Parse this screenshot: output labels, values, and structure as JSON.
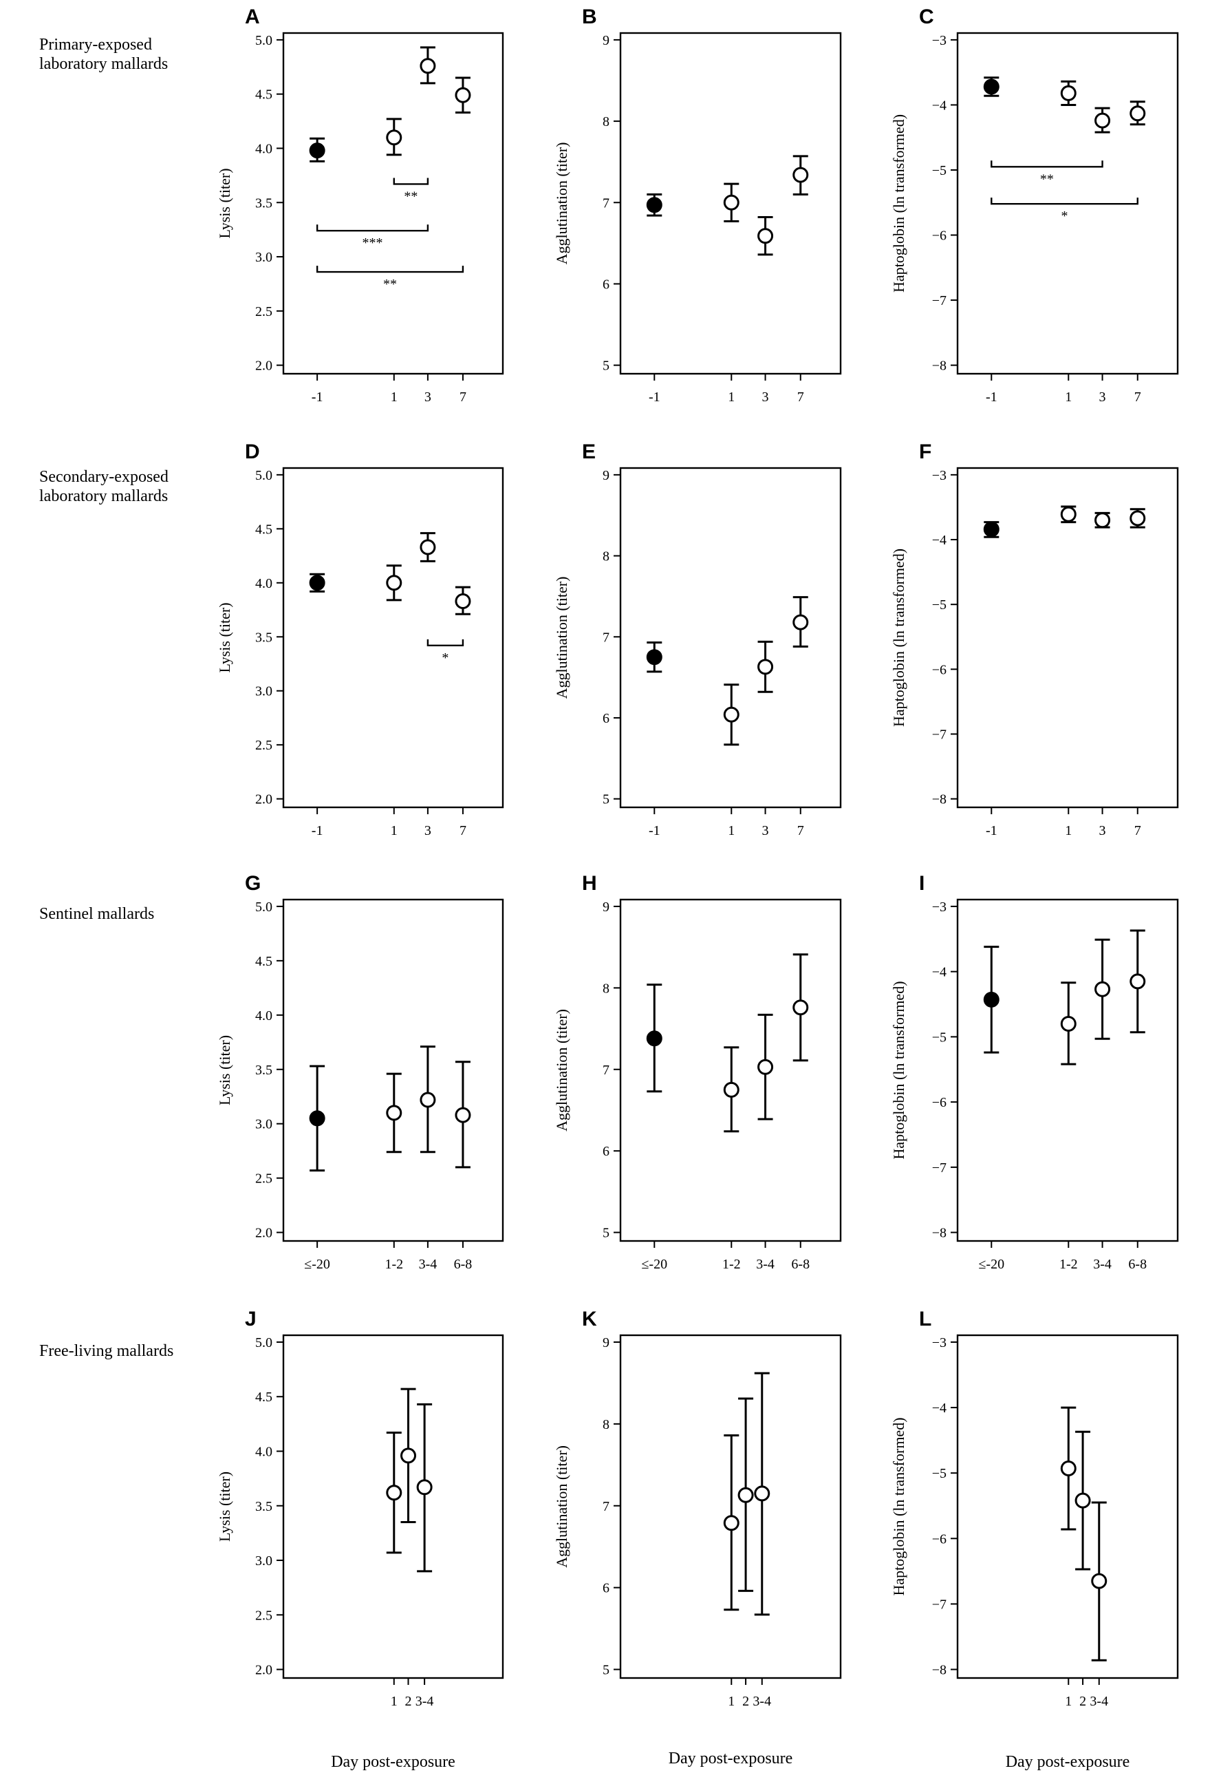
{
  "rows": [
    {
      "label": [
        "Primary-exposed",
        "laboratory mallards"
      ]
    },
    {
      "label": [
        "Secondary-exposed",
        "laboratory mallards"
      ]
    },
    {
      "label": [
        "Sentinel mallards"
      ]
    },
    {
      "label": [
        "Free-living mallards"
      ]
    }
  ],
  "xlabel": "Day post-exposure",
  "chart_data": [
    {
      "letter": "A",
      "type": "scatter",
      "ylabel": "Lysis (titer)",
      "ylim": [
        2.0,
        5.0
      ],
      "yticks": [
        "2.0",
        "2.5",
        "3.0",
        "3.5",
        "4.0",
        "4.5",
        "5.0"
      ],
      "xticks": [
        "-1",
        "1",
        "3",
        "7"
      ],
      "points": [
        {
          "x": "-1",
          "y": 3.98,
          "lo": 3.88,
          "hi": 4.09,
          "filled": true
        },
        {
          "x": "1",
          "y": 4.1,
          "lo": 3.94,
          "hi": 4.27,
          "filled": false
        },
        {
          "x": "3",
          "y": 4.76,
          "lo": 4.6,
          "hi": 4.93,
          "filled": false
        },
        {
          "x": "7",
          "y": 4.49,
          "lo": 4.33,
          "hi": 4.65,
          "filled": false
        }
      ],
      "significance": [
        {
          "from": "1",
          "to": "3",
          "y": 3.67,
          "label": "**"
        },
        {
          "from": "-1",
          "to": "3",
          "y": 3.24,
          "label": "***"
        },
        {
          "from": "-1",
          "to": "7",
          "y": 2.86,
          "label": "**"
        }
      ]
    },
    {
      "letter": "B",
      "type": "scatter",
      "ylabel": "Agglutination (titer)",
      "ylim": [
        5,
        9
      ],
      "yticks": [
        "5",
        "6",
        "7",
        "8",
        "9"
      ],
      "xticks": [
        "-1",
        "1",
        "3",
        "7"
      ],
      "points": [
        {
          "x": "-1",
          "y": 6.97,
          "lo": 6.84,
          "hi": 7.1,
          "filled": true
        },
        {
          "x": "1",
          "y": 7.0,
          "lo": 6.77,
          "hi": 7.23,
          "filled": false
        },
        {
          "x": "3",
          "y": 6.59,
          "lo": 6.36,
          "hi": 6.82,
          "filled": false
        },
        {
          "x": "7",
          "y": 7.34,
          "lo": 7.1,
          "hi": 7.57,
          "filled": false
        }
      ],
      "significance": []
    },
    {
      "letter": "C",
      "type": "scatter",
      "ylabel": "Haptoglobin (ln transformed)",
      "ylim": [
        -8,
        -3
      ],
      "yticks": [
        "−8",
        "−7",
        "−6",
        "−5",
        "−4",
        "−3"
      ],
      "xticks": [
        "-1",
        "1",
        "3",
        "7"
      ],
      "points": [
        {
          "x": "-1",
          "y": -3.72,
          "lo": -3.86,
          "hi": -3.58,
          "filled": true
        },
        {
          "x": "1",
          "y": -3.82,
          "lo": -4.0,
          "hi": -3.64,
          "filled": false
        },
        {
          "x": "3",
          "y": -4.24,
          "lo": -4.42,
          "hi": -4.05,
          "filled": false
        },
        {
          "x": "7",
          "y": -4.13,
          "lo": -4.3,
          "hi": -3.95,
          "filled": false
        }
      ],
      "significance": [
        {
          "from": "-1",
          "to": "3",
          "y": -4.95,
          "label": "**"
        },
        {
          "from": "-1",
          "to": "7",
          "y": -5.52,
          "label": "*"
        }
      ]
    },
    {
      "letter": "D",
      "type": "scatter",
      "ylabel": "Lysis (titer)",
      "ylim": [
        2.0,
        5.0
      ],
      "yticks": [
        "2.0",
        "2.5",
        "3.0",
        "3.5",
        "4.0",
        "4.5",
        "5.0"
      ],
      "xticks": [
        "-1",
        "1",
        "3",
        "7"
      ],
      "points": [
        {
          "x": "-1",
          "y": 4.0,
          "lo": 3.92,
          "hi": 4.08,
          "filled": true
        },
        {
          "x": "1",
          "y": 4.0,
          "lo": 3.84,
          "hi": 4.16,
          "filled": false
        },
        {
          "x": "3",
          "y": 4.33,
          "lo": 4.2,
          "hi": 4.46,
          "filled": false
        },
        {
          "x": "7",
          "y": 3.83,
          "lo": 3.71,
          "hi": 3.96,
          "filled": false
        }
      ],
      "significance": [
        {
          "from": "3",
          "to": "7",
          "y": 3.42,
          "label": "*"
        }
      ]
    },
    {
      "letter": "E",
      "type": "scatter",
      "ylabel": "Agglutination (titer)",
      "ylim": [
        5,
        9
      ],
      "yticks": [
        "5",
        "6",
        "7",
        "8",
        "9"
      ],
      "xticks": [
        "-1",
        "1",
        "3",
        "7"
      ],
      "points": [
        {
          "x": "-1",
          "y": 6.75,
          "lo": 6.57,
          "hi": 6.93,
          "filled": true
        },
        {
          "x": "1",
          "y": 6.04,
          "lo": 5.67,
          "hi": 6.41,
          "filled": false
        },
        {
          "x": "3",
          "y": 6.63,
          "lo": 6.32,
          "hi": 6.94,
          "filled": false
        },
        {
          "x": "7",
          "y": 7.18,
          "lo": 6.88,
          "hi": 7.49,
          "filled": false
        }
      ],
      "significance": []
    },
    {
      "letter": "F",
      "type": "scatter",
      "ylabel": "Haptoglobin (ln transformed)",
      "ylim": [
        -8,
        -3
      ],
      "yticks": [
        "−8",
        "−7",
        "−6",
        "−5",
        "−4",
        "−3"
      ],
      "xticks": [
        "-1",
        "1",
        "3",
        "7"
      ],
      "points": [
        {
          "x": "-1",
          "y": -3.84,
          "lo": -3.96,
          "hi": -3.73,
          "filled": true
        },
        {
          "x": "1",
          "y": -3.61,
          "lo": -3.73,
          "hi": -3.49,
          "filled": false
        },
        {
          "x": "3",
          "y": -3.7,
          "lo": -3.81,
          "hi": -3.59,
          "filled": false
        },
        {
          "x": "7",
          "y": -3.67,
          "lo": -3.81,
          "hi": -3.53,
          "filled": false
        }
      ],
      "significance": []
    },
    {
      "letter": "G",
      "type": "scatter",
      "ylabel": "Lysis (titer)",
      "ylim": [
        2.0,
        5.0
      ],
      "yticks": [
        "2.0",
        "2.5",
        "3.0",
        "3.5",
        "4.0",
        "4.5",
        "5.0"
      ],
      "xticks": [
        "≤-20",
        "1-2",
        "3-4",
        "6-8"
      ],
      "points": [
        {
          "x": "≤-20",
          "y": 3.05,
          "lo": 2.57,
          "hi": 3.53,
          "filled": true
        },
        {
          "x": "1-2",
          "y": 3.1,
          "lo": 2.74,
          "hi": 3.46,
          "filled": false
        },
        {
          "x": "3-4",
          "y": 3.22,
          "lo": 2.74,
          "hi": 3.71,
          "filled": false
        },
        {
          "x": "6-8",
          "y": 3.08,
          "lo": 2.6,
          "hi": 3.57,
          "filled": false
        }
      ],
      "significance": []
    },
    {
      "letter": "H",
      "type": "scatter",
      "ylabel": "Agglutination (titer)",
      "ylim": [
        5,
        9
      ],
      "yticks": [
        "5",
        "6",
        "7",
        "8",
        "9"
      ],
      "xticks": [
        "≤-20",
        "1-2",
        "3-4",
        "6-8"
      ],
      "points": [
        {
          "x": "≤-20",
          "y": 7.38,
          "lo": 6.73,
          "hi": 8.04,
          "filled": true
        },
        {
          "x": "1-2",
          "y": 6.75,
          "lo": 6.24,
          "hi": 7.27,
          "filled": false
        },
        {
          "x": "3-4",
          "y": 7.03,
          "lo": 6.39,
          "hi": 7.67,
          "filled": false
        },
        {
          "x": "6-8",
          "y": 7.76,
          "lo": 7.11,
          "hi": 8.41,
          "filled": false
        }
      ],
      "significance": []
    },
    {
      "letter": "I",
      "type": "scatter",
      "ylabel": "Haptoglobin (ln transformed)",
      "ylim": [
        -8,
        -3
      ],
      "yticks": [
        "−8",
        "−7",
        "−6",
        "−5",
        "−4",
        "−3"
      ],
      "xticks": [
        "≤-20",
        "1-2",
        "3-4",
        "6-8"
      ],
      "points": [
        {
          "x": "≤-20",
          "y": -4.43,
          "lo": -5.24,
          "hi": -3.62,
          "filled": true
        },
        {
          "x": "1-2",
          "y": -4.8,
          "lo": -5.42,
          "hi": -4.17,
          "filled": false
        },
        {
          "x": "3-4",
          "y": -4.27,
          "lo": -5.03,
          "hi": -3.51,
          "filled": false
        },
        {
          "x": "6-8",
          "y": -4.15,
          "lo": -4.93,
          "hi": -3.37,
          "filled": false
        }
      ],
      "significance": []
    },
    {
      "letter": "J",
      "type": "scatter",
      "ylabel": "Lysis (titer)",
      "ylim": [
        2.0,
        5.0
      ],
      "yticks": [
        "2.0",
        "2.5",
        "3.0",
        "3.5",
        "4.0",
        "4.5",
        "5.0"
      ],
      "xticks": [
        "1",
        "2",
        "3-4"
      ],
      "points": [
        {
          "x": "1",
          "y": 3.62,
          "lo": 3.07,
          "hi": 4.17,
          "filled": false
        },
        {
          "x": "2",
          "y": 3.96,
          "lo": 3.35,
          "hi": 4.57,
          "filled": false
        },
        {
          "x": "3-4",
          "y": 3.67,
          "lo": 2.9,
          "hi": 4.43,
          "filled": false
        }
      ],
      "significance": []
    },
    {
      "letter": "K",
      "type": "scatter",
      "ylabel": "Agglutination (titer)",
      "ylim": [
        5,
        9
      ],
      "yticks": [
        "5",
        "6",
        "7",
        "8",
        "9"
      ],
      "xticks": [
        "1",
        "2",
        "3-4"
      ],
      "points": [
        {
          "x": "1",
          "y": 6.79,
          "lo": 5.73,
          "hi": 7.86,
          "filled": false
        },
        {
          "x": "2",
          "y": 7.13,
          "lo": 5.96,
          "hi": 8.31,
          "filled": false
        },
        {
          "x": "3-4",
          "y": 7.15,
          "lo": 5.67,
          "hi": 8.62,
          "filled": false
        }
      ],
      "significance": []
    },
    {
      "letter": "L",
      "type": "scatter",
      "ylabel": "Haptoglobin (ln transformed)",
      "ylim": [
        -8,
        -3
      ],
      "yticks": [
        "−8",
        "−7",
        "−6",
        "−5",
        "−4",
        "−3"
      ],
      "xticks": [
        "1",
        "2",
        "3-4"
      ],
      "points": [
        {
          "x": "1",
          "y": -4.93,
          "lo": -5.86,
          "hi": -4.0,
          "filled": false
        },
        {
          "x": "2",
          "y": -5.42,
          "lo": -6.47,
          "hi": -4.37,
          "filled": false
        },
        {
          "x": "3-4",
          "y": -6.65,
          "lo": -7.86,
          "hi": -5.45,
          "filled": false
        }
      ],
      "significance": []
    }
  ]
}
